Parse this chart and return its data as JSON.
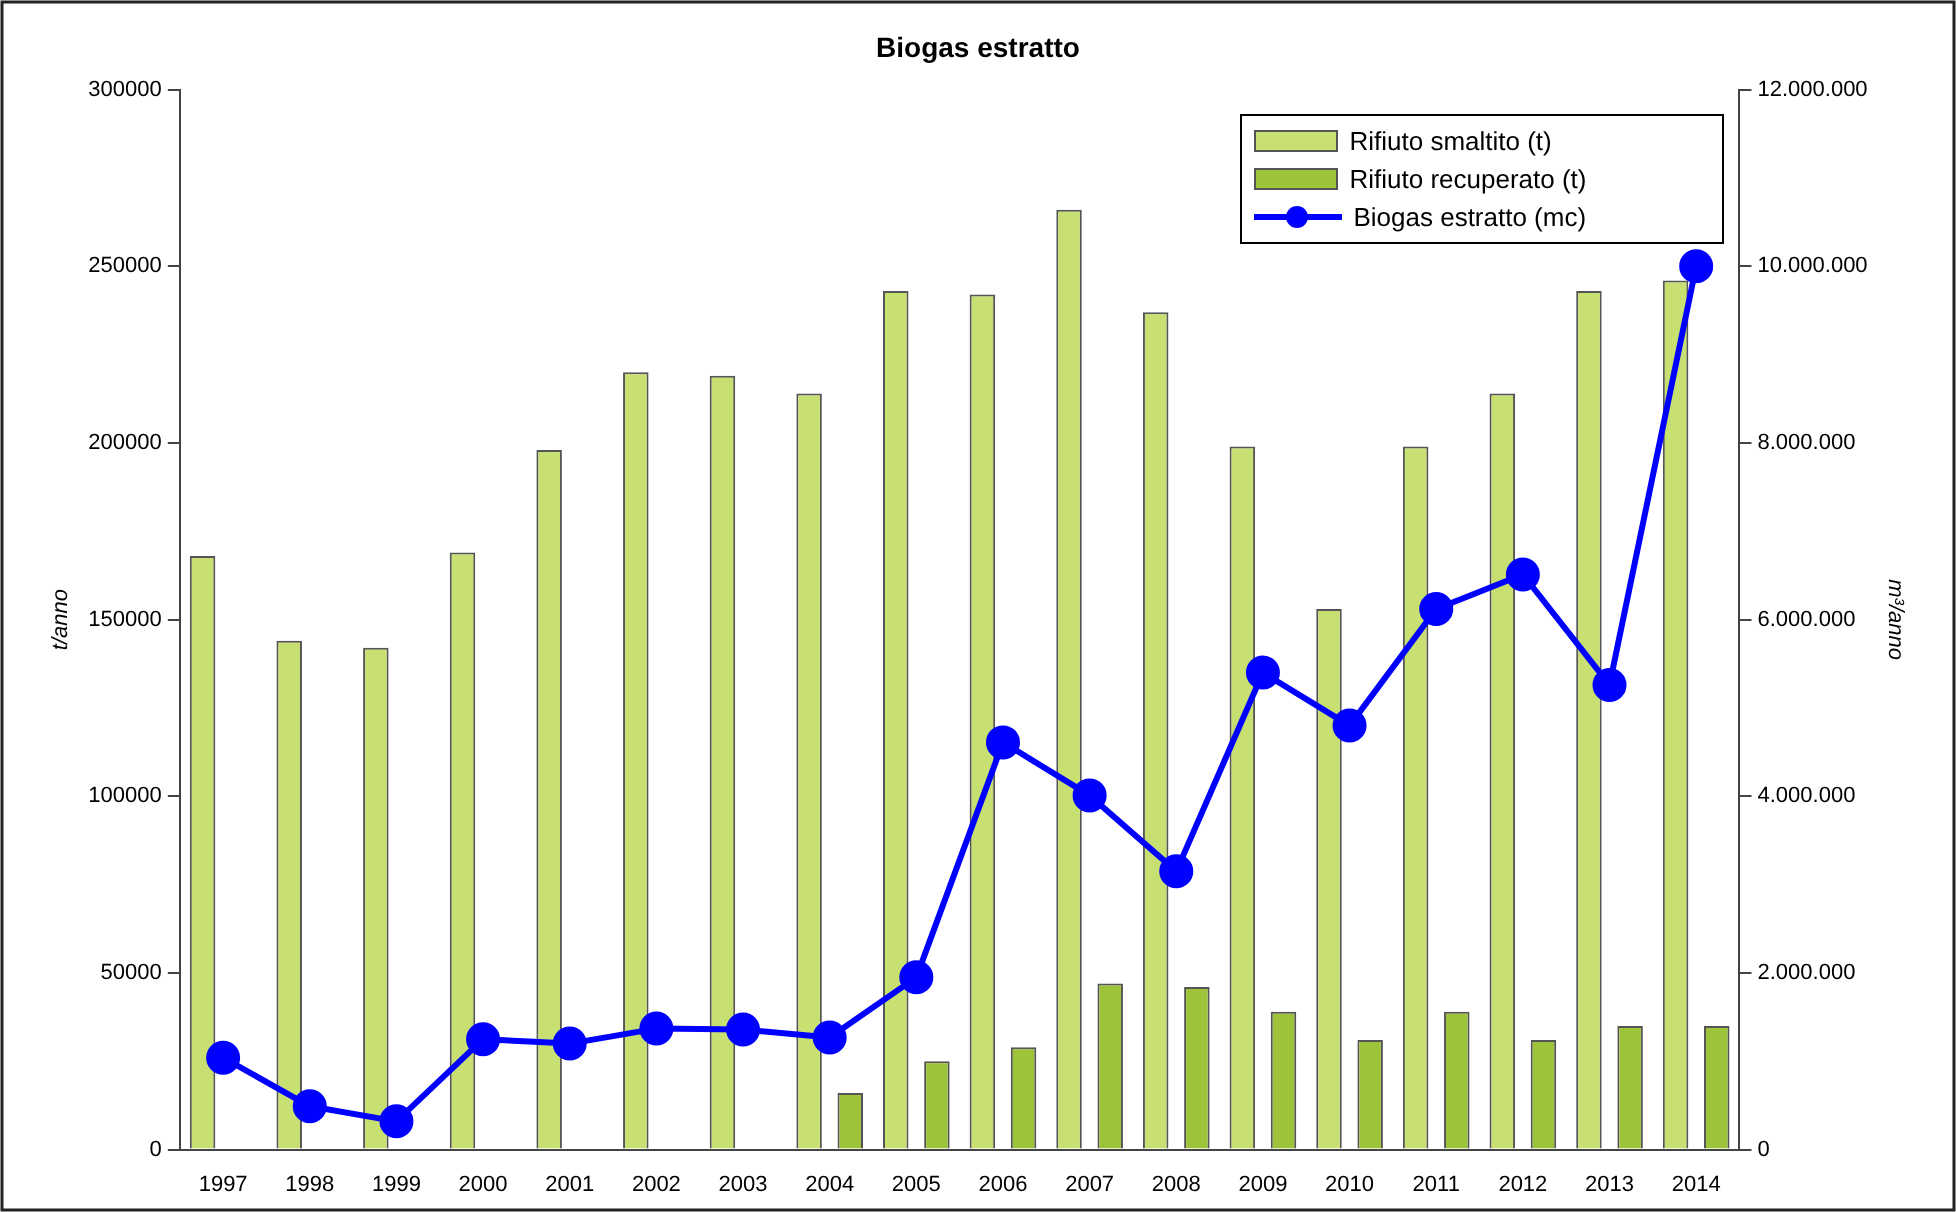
{
  "chart_data": {
    "type": "bar",
    "title": "Biogas estratto",
    "ylabel": "t/anno",
    "y2label": "m³/anno",
    "categories": [
      "1997",
      "1998",
      "1999",
      "2000",
      "2001",
      "2002",
      "2003",
      "2004",
      "2005",
      "2006",
      "2007",
      "2008",
      "2009",
      "2010",
      "2011",
      "2012",
      "2013",
      "2014"
    ],
    "series": [
      {
        "name": "Rifiuto smaltito (t)",
        "color": "#c8df72",
        "values": [
          168000,
          144000,
          142000,
          169000,
          198000,
          220000,
          219000,
          214000,
          243000,
          242000,
          266000,
          237000,
          199000,
          153000,
          199000,
          214000,
          243000,
          246000
        ]
      },
      {
        "name": "Rifiuto recuperato (t)",
        "color": "#9dc33b",
        "values": [
          0,
          0,
          0,
          0,
          0,
          0,
          0,
          16000,
          25000,
          29000,
          47000,
          46000,
          39000,
          31000,
          39000,
          31000,
          35000,
          35000
        ]
      },
      {
        "name": "Biogas estratto (mc)",
        "type": "line",
        "axis": "y2",
        "color": "#0000ff",
        "marker": "circle",
        "values": [
          1040000,
          490000,
          320000,
          1250000,
          1200000,
          1370000,
          1360000,
          1270000,
          1950000,
          4610000,
          4010000,
          3150000,
          5400000,
          4800000,
          6120000,
          6510000,
          5260000,
          10000000
        ]
      }
    ],
    "ylim": [
      0,
      300000
    ],
    "yticks": [
      0,
      50000,
      100000,
      150000,
      200000,
      250000,
      300000
    ],
    "y2lim": [
      0,
      12000000
    ],
    "y2ticks": [
      0,
      {
        "value": 2000000,
        "label": "2.000.000"
      },
      {
        "value": 4000000,
        "label": "4.000.000"
      },
      {
        "value": 6000000,
        "label": "6.000.000"
      },
      {
        "value": 8000000,
        "label": "8.000.000"
      },
      {
        "value": 10000000,
        "label": "10.000.000"
      },
      {
        "value": 12000000,
        "label": "12.000.000"
      }
    ],
    "grid": false,
    "legend": "top right"
  }
}
